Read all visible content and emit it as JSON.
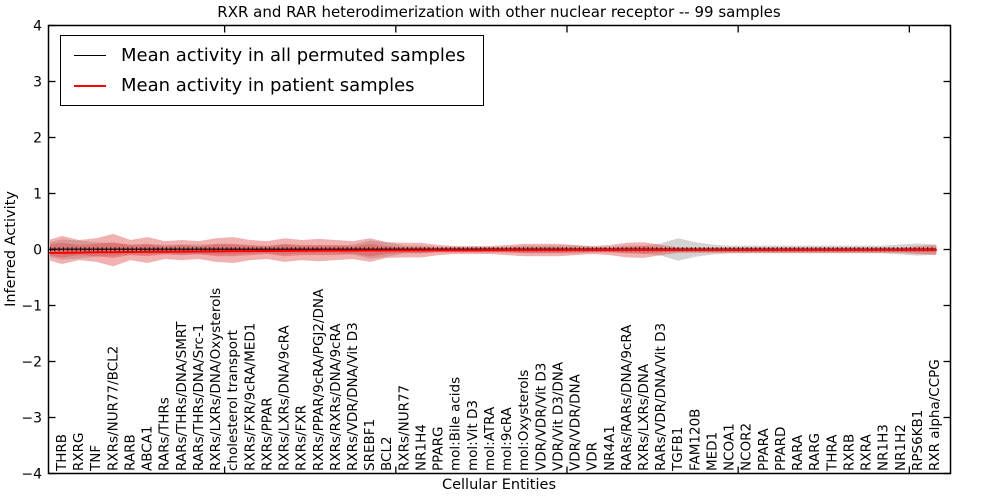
{
  "colors": {
    "background": "#ffffff",
    "frame": "#000000",
    "permuted_line": "#000000",
    "patient_line": "#ff0000",
    "permuted_band": "#828282",
    "patient_band": "#e14646"
  },
  "legend": {
    "items": [
      {
        "label": "Mean activity in all permuted samples",
        "color": "#000000"
      },
      {
        "label": "Mean activity in patient samples",
        "color": "#ff0000"
      }
    ]
  },
  "chart_data": {
    "type": "line",
    "subtype": "mean-activity-lines-with-violin-range-bands",
    "title": "RXR and RAR heterodimerization with other nuclear receptor -- 99 samples",
    "xlabel": "Cellular Entities",
    "ylabel": "Inferred Activity",
    "ylim": [
      -4,
      4
    ],
    "yticks": [
      -4,
      -3,
      -2,
      -1,
      0,
      1,
      2,
      3,
      4
    ],
    "xticks_numeric": [
      10,
      20,
      30,
      40,
      50
    ],
    "grid": false,
    "legend_position": "upper left",
    "categories": [
      "THRB",
      "RXRG",
      "TNF",
      "RXRs/NUR77/BCL2",
      "RARB",
      "ABCA1",
      "RARs/THRs",
      "RARs/THRs/DNA/SMRT",
      "RARs/THRs/DNA/Src-1",
      "RXRs/LXRs/DNA/Oxysterols",
      "cholesterol transport",
      "RXRs/FXR/9cRA/MED1",
      "RXRs/PPAR",
      "RXRs/LXRs/DNA/9cRA",
      "RXRs/FXR",
      "RXRs/PPAR/9cRA/PGJ2/DNA",
      "RXRs/RXRs/DNA/9cRA",
      "RXRs/VDR/DNA/Vit D3",
      "SREBF1",
      "BCL2",
      "RXRs/NUR77",
      "NR1H4",
      "PPARG",
      "mol:Bile acids",
      "mol:Vit D3",
      "mol:ATRA",
      "mol:9cRA",
      "mol:Oxysterols",
      "VDR/VDR/Vit D3",
      "VDR/Vit D3/DNA",
      "VDR/VDR/DNA",
      "VDR",
      "NR4A1",
      "RARs/RARs/DNA/9cRA",
      "RXRs/LXRs/DNA",
      "RARs/VDR/DNA/Vit D3",
      "TGFB1",
      "FAM120B",
      "MED1",
      "NCOA1",
      "NCOR2",
      "PPARA",
      "PPARD",
      "RARA",
      "RARG",
      "THRA",
      "RXRB",
      "RXRA",
      "NR1H3",
      "NR1H2",
      "RPS6KB1",
      "RXR alpha/CCPG"
    ],
    "series": [
      {
        "name": "Mean activity in all permuted samples",
        "color": "#000000",
        "marker": "plus",
        "values": [
          0,
          0,
          0,
          0,
          0,
          0,
          0,
          0,
          0,
          0,
          0,
          0,
          0,
          0,
          0,
          0,
          0,
          0,
          0,
          0,
          0,
          0,
          0,
          0,
          0,
          0,
          0,
          0,
          0,
          0,
          0,
          0,
          0,
          0,
          0,
          0,
          0,
          0,
          0,
          0,
          0,
          0,
          0,
          0,
          0,
          0,
          0,
          0,
          0,
          0,
          0,
          0
        ]
      },
      {
        "name": "Mean activity in patient samples",
        "color": "#ff0000",
        "marker": "none",
        "values": [
          -0.06,
          -0.055,
          -0.05,
          -0.048,
          -0.045,
          -0.042,
          -0.04,
          -0.037,
          -0.035,
          -0.033,
          -0.03,
          -0.028,
          -0.026,
          -0.024,
          -0.022,
          -0.021,
          -0.02,
          -0.019,
          -0.018,
          -0.017,
          -0.016,
          -0.015,
          -0.014,
          -0.013,
          -0.013,
          -0.012,
          -0.012,
          -0.011,
          -0.011,
          -0.011,
          -0.01,
          -0.01,
          -0.01,
          -0.01,
          -0.009,
          -0.009,
          -0.009,
          -0.008,
          -0.008,
          -0.008,
          -0.008,
          -0.008,
          -0.007,
          -0.007,
          -0.007,
          -0.007,
          -0.007,
          -0.007,
          -0.007,
          -0.007,
          -0.007,
          -0.007
        ]
      }
    ],
    "bands": [
      {
        "name": "permuted-samples-range",
        "color": "#828282",
        "opacity": 0.35,
        "center": 0.0,
        "halfwidths": [
          0.18,
          0.16,
          0.13,
          0.11,
          0.09,
          0.09,
          0.09,
          0.09,
          0.09,
          0.09,
          0.09,
          0.07,
          0.07,
          0.09,
          0.07,
          0.07,
          0.07,
          0.09,
          0.16,
          0.13,
          0.07,
          0.07,
          0.05,
          0.05,
          0.05,
          0.05,
          0.05,
          0.07,
          0.07,
          0.07,
          0.07,
          0.05,
          0.05,
          0.07,
          0.07,
          0.11,
          0.2,
          0.13,
          0.09,
          0.07,
          0.07,
          0.07,
          0.07,
          0.07,
          0.07,
          0.07,
          0.07,
          0.07,
          0.07,
          0.09,
          0.11,
          0.09
        ]
      },
      {
        "name": "patient-samples-range-outer",
        "color": "#e14646",
        "opacity": 0.42,
        "center": -0.01,
        "halfwidths": [
          0.25,
          0.18,
          0.21,
          0.29,
          0.18,
          0.23,
          0.16,
          0.18,
          0.16,
          0.21,
          0.23,
          0.18,
          0.16,
          0.21,
          0.18,
          0.2,
          0.18,
          0.16,
          0.21,
          0.14,
          0.13,
          0.13,
          0.09,
          0.07,
          0.07,
          0.07,
          0.09,
          0.11,
          0.11,
          0.11,
          0.09,
          0.07,
          0.09,
          0.13,
          0.14,
          0.09,
          0.05,
          0.05,
          0.05,
          0.05,
          0.05,
          0.05,
          0.05,
          0.05,
          0.05,
          0.05,
          0.05,
          0.05,
          0.05,
          0.05,
          0.07,
          0.09
        ]
      },
      {
        "name": "patient-samples-range-inner",
        "color": "#e14646",
        "opacity": 0.42,
        "center": -0.01,
        "halfwidths": [
          0.13,
          0.09,
          0.11,
          0.14,
          0.09,
          0.11,
          0.07,
          0.09,
          0.07,
          0.11,
          0.11,
          0.09,
          0.07,
          0.11,
          0.09,
          0.09,
          0.09,
          0.07,
          0.11,
          0.07,
          0.05,
          0.05,
          0.04,
          0.04,
          0.04,
          0.04,
          0.04,
          0.05,
          0.05,
          0.05,
          0.04,
          0.04,
          0.04,
          0.05,
          0.07,
          0.04,
          0.03,
          0.03,
          0.03,
          0.03,
          0.03,
          0.03,
          0.03,
          0.03,
          0.03,
          0.03,
          0.03,
          0.03,
          0.03,
          0.03,
          0.04,
          0.04
        ]
      }
    ],
    "sample_count_note": "99 samples"
  }
}
